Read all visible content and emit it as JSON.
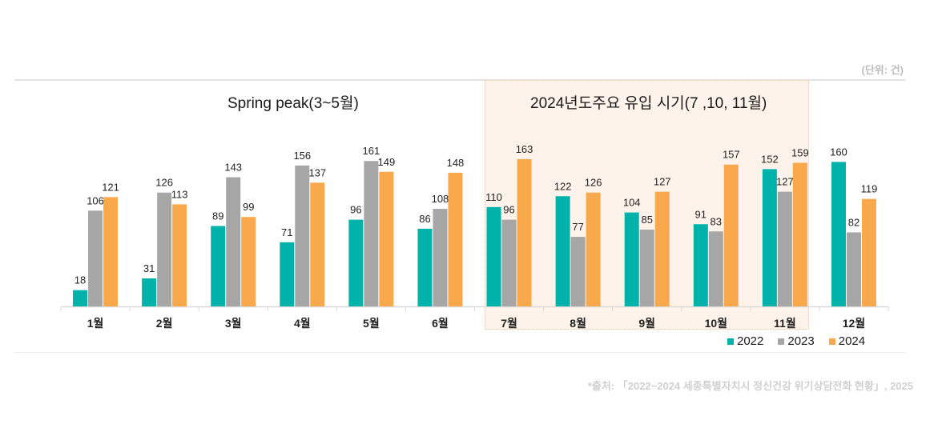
{
  "unit_label": "(단위: 건)",
  "source": "*출처: 「2022~2024 세종특별자치시 정신건강 위기상담전화 현황」, 2025",
  "annotations": {
    "spring_peak": "Spring peak(3~5월)",
    "main_inflow": "2024년도주요 유입 시기(7 ,10, 11월)"
  },
  "colors": {
    "2022": "#00b2a9",
    "2023": "#a6a6a6",
    "2024": "#f9a94b",
    "highlight_bg": "#fdf3ea"
  },
  "chart_data": {
    "type": "bar",
    "title": "",
    "xlabel": "",
    "ylabel": "",
    "unit": "건",
    "ylim": [
      0,
      170
    ],
    "grid": false,
    "legend_position": "bottom-right",
    "categories": [
      "1월",
      "2월",
      "3월",
      "4월",
      "5월",
      "6월",
      "7월",
      "8월",
      "9월",
      "10월",
      "11월",
      "12월"
    ],
    "highlighted_categories": [
      "7월",
      "8월",
      "9월",
      "10월",
      "11월"
    ],
    "series": [
      {
        "name": "2022",
        "values": [
          18,
          31,
          89,
          71,
          96,
          86,
          110,
          122,
          104,
          91,
          152,
          160
        ]
      },
      {
        "name": "2023",
        "values": [
          106,
          126,
          143,
          156,
          161,
          108,
          96,
          77,
          85,
          83,
          127,
          82
        ]
      },
      {
        "name": "2024",
        "values": [
          121,
          113,
          99,
          137,
          149,
          148,
          163,
          126,
          127,
          157,
          159,
          119
        ]
      }
    ]
  }
}
